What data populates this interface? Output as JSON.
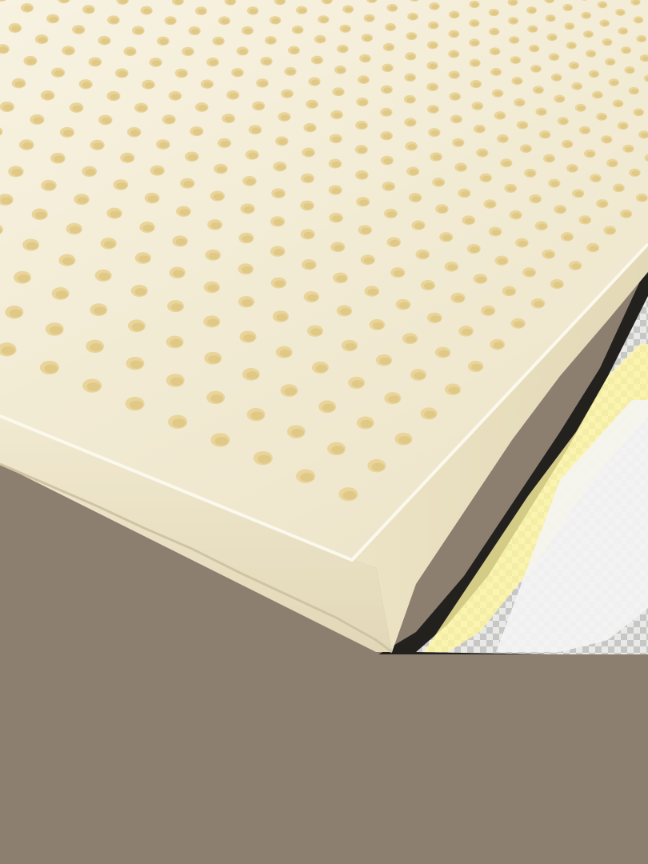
{
  "image": {
    "subject": "latex-foam-mattress-topper",
    "colors": {
      "background": "#8d7f6f",
      "foam_top": "#f3ecd6",
      "foam_top_far": "#f7f2e0",
      "foam_edge": "#ece4c9",
      "foam_edge_shadow": "#ddd3b3",
      "hole": "#e9d49a",
      "hole_shadow": "#d8bd76",
      "checker_light": "#ffffff",
      "checker_dark": "#000000",
      "checker_yellow": "#fff7a8"
    }
  }
}
